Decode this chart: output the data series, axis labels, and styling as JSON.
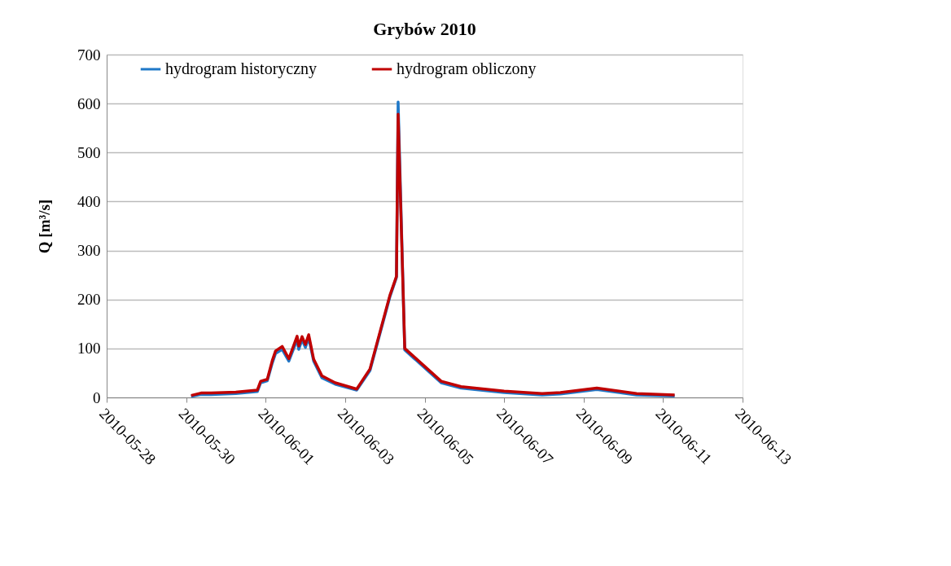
{
  "chart_data": {
    "type": "line",
    "title": "Grybów 2010",
    "ylabel": "Q [m³/s]",
    "xlim": [
      "2010-05-28",
      "2010-06-13"
    ],
    "xticks": [
      "2010-05-28",
      "2010-05-30",
      "2010-06-01",
      "2010-06-03",
      "2010-06-05",
      "2010-06-07",
      "2010-06-09",
      "2010-06-11",
      "2010-06-13"
    ],
    "ylim": [
      0,
      700
    ],
    "yticks": [
      0,
      100,
      200,
      300,
      400,
      500,
      600,
      700
    ],
    "grid": "y",
    "legend": "top",
    "line_style": "solid",
    "marker": "none",
    "x": [
      "2010-05-30T03:00",
      "2010-05-30T09:00",
      "2010-05-30T15:00",
      "2010-05-31T06:00",
      "2010-05-31T19:00",
      "2010-05-31T21:00",
      "2010-06-01T01:00",
      "2010-06-01T04:00",
      "2010-06-01T06:00",
      "2010-06-01T10:00",
      "2010-06-01T14:00",
      "2010-06-01T19:00",
      "2010-06-01T20:00",
      "2010-06-01T22:00",
      "2010-06-02T00:00",
      "2010-06-02T02:00",
      "2010-06-02T05:00",
      "2010-06-02T10:00",
      "2010-06-02T18:00",
      "2010-06-03T07:00",
      "2010-06-03T15:00",
      "2010-06-04T03:00",
      "2010-06-04T07:00",
      "2010-06-04T08:00",
      "2010-06-04T12:00",
      "2010-06-05T10:00",
      "2010-06-05T22:00",
      "2010-06-07T00:00",
      "2010-06-07T23:00",
      "2010-06-08T10:00",
      "2010-06-09T08:00",
      "2010-06-10T08:00",
      "2010-06-11T07:00"
    ],
    "series": [
      {
        "name": "hydrogram historyczny",
        "color": "#1f78c8",
        "values": [
          2,
          6,
          6,
          8,
          12,
          30,
          34,
          70,
          90,
          98,
          74,
          118,
          98,
          118,
          102,
          122,
          74,
          40,
          27,
          15,
          55,
          205,
          245,
          603,
          97,
          30,
          19,
          10,
          5,
          7,
          16,
          5,
          3
        ]
      },
      {
        "name": "hydrogram obliczony",
        "color": "#c00000",
        "values": [
          4,
          9,
          9,
          11,
          15,
          33,
          37,
          75,
          95,
          104,
          79,
          125,
          105,
          124,
          108,
          128,
          78,
          44,
          30,
          17,
          58,
          208,
          247,
          578,
          100,
          33,
          22,
          13,
          8,
          10,
          19,
          8,
          5
        ]
      }
    ]
  }
}
